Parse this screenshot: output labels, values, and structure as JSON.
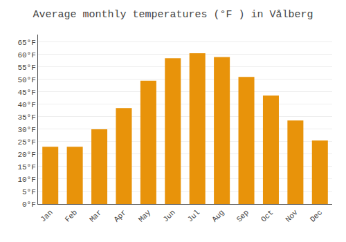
{
  "chart_data": {
    "type": "bar",
    "title": "Average monthly temperatures (°F ) in Vålberg",
    "categories": [
      "Jan",
      "Feb",
      "Mar",
      "Apr",
      "May",
      "Jun",
      "Jul",
      "Aug",
      "Sep",
      "Oct",
      "Nov",
      "Dec"
    ],
    "values": [
      23,
      23,
      30,
      38.5,
      49.5,
      58.5,
      60.5,
      59,
      51,
      43.5,
      33.5,
      25.5
    ],
    "color": "#E8930A",
    "ylim": [
      0,
      68
    ],
    "yticks": [
      {
        "value": 0,
        "label": "0°F"
      },
      {
        "value": 5,
        "label": "5°F"
      },
      {
        "value": 10,
        "label": "10°F"
      },
      {
        "value": 15,
        "label": "15°F"
      },
      {
        "value": 20,
        "label": "20°F"
      },
      {
        "value": 25,
        "label": "25°F"
      },
      {
        "value": 30,
        "label": "30°F"
      },
      {
        "value": 35,
        "label": "35°F"
      },
      {
        "value": 40,
        "label": "40°F"
      },
      {
        "value": 45,
        "label": "45°F"
      },
      {
        "value": 50,
        "label": "50°F"
      },
      {
        "value": 55,
        "label": "55°F"
      },
      {
        "value": 60,
        "label": "60°F"
      },
      {
        "value": 65,
        "label": "65°F"
      }
    ],
    "grid": true
  }
}
